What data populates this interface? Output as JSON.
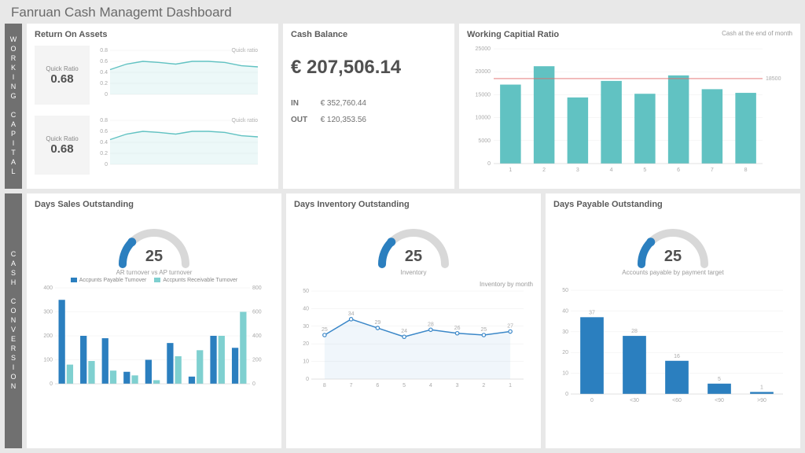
{
  "title": "Fanruan Cash Managemt Dashboard",
  "sections": {
    "working_capital": "WORKING CAPITAL",
    "cash_conversion": "CASH CONVERSION"
  },
  "return_on_assets": {
    "title": "Return On Assets",
    "quick_ratio_label": "Quick Ratio",
    "quick_ratio_value": "0.68",
    "spark_label": "Quick ratio",
    "ylim": [
      0,
      0.8
    ],
    "ticks": [
      "0",
      "0.2",
      "0.4",
      "0.6",
      "0.8"
    ],
    "series": [
      0.45,
      0.55,
      0.6,
      0.58,
      0.55,
      0.6,
      0.6,
      0.58,
      0.52,
      0.5
    ],
    "line_color": "#61c2c2",
    "area_color": "rgba(97,194,194,0.12)"
  },
  "cash_balance": {
    "title": "Cash Balance",
    "amount": "€ 207,506.14",
    "in_label": "IN",
    "in": "€ 352,760.44",
    "out_label": "OUT",
    "out": "€ 120,353.56"
  },
  "wcr": {
    "title": "Working Capitial Ratio",
    "subtitle": "Cash at the end of month",
    "categories": [
      "1",
      "2",
      "3",
      "4",
      "5",
      "6",
      "7",
      "8"
    ],
    "values": [
      17200,
      21200,
      14400,
      18000,
      15200,
      19200,
      16200,
      15400
    ],
    "ref": 18500,
    "ref_label": "18500",
    "ylim": [
      0,
      25000
    ],
    "ytick": 5000,
    "bar_color": "#61c2c2",
    "ref_color": "#e06868"
  },
  "dso": {
    "title": "Days Sales Outstanding",
    "gauge": 25,
    "gauge_caption": "AR turnover vs AP turnover",
    "legend": [
      "Accpunts Payable Turnover",
      "Accpunts Receivable Turnover"
    ],
    "payable": [
      350,
      200,
      190,
      50,
      100,
      170,
      30,
      200,
      150
    ],
    "receivable": [
      160,
      190,
      110,
      70,
      30,
      230,
      280,
      400,
      600
    ],
    "ylim_l": [
      0,
      400
    ],
    "ytick_l": 100,
    "ylim_r": [
      0,
      800
    ],
    "ytick_r": 200,
    "color_a": "#2b7fbf",
    "color_b": "#7fd0d0"
  },
  "dio": {
    "title": "Days Inventory Outstanding",
    "gauge": 25,
    "gauge_caption": "Inventory",
    "sub": "Inventory by month",
    "categories": [
      "8",
      "7",
      "6",
      "5",
      "4",
      "3",
      "2",
      "1"
    ],
    "values": [
      25,
      34,
      29,
      24,
      28,
      26,
      25,
      27
    ],
    "label_values": [
      "25",
      "34",
      "29",
      "24",
      "28",
      "26",
      "25",
      "27"
    ],
    "ylim": [
      0,
      50
    ],
    "ytick": 10,
    "line_color": "#3a87c8",
    "point_color": "#3a87c8",
    "fill": "rgba(58,135,200,0.08)"
  },
  "dpo": {
    "title": "Days Payable Outstanding",
    "gauge": 25,
    "gauge_caption": "Accounts payable by payment target",
    "categories": [
      "0",
      "<30",
      "<60",
      "<90",
      ">90"
    ],
    "values": [
      37,
      28,
      16,
      5,
      1
    ],
    "ylim": [
      0,
      50
    ],
    "ytick": 10,
    "bar_color": "#2b7fbf"
  },
  "gauge_style": {
    "bg": "#d8d8d8",
    "fg": "#2b7fbf",
    "thickness": 10
  }
}
